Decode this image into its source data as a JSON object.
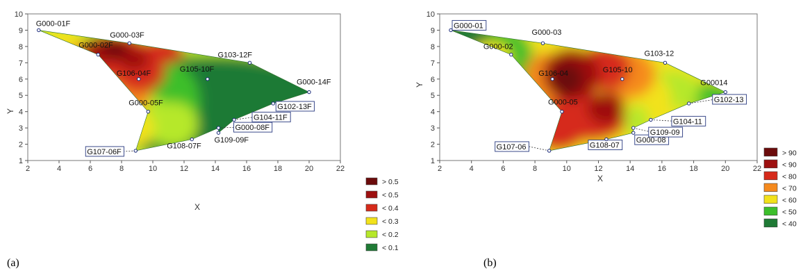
{
  "colors": {
    "c0": "#1f7a35",
    "c1": "#3cbf2b",
    "c2": "#b6e82a",
    "c3": "#f2e21b",
    "c4": "#f58a1e",
    "c5": "#d62a1a",
    "c6": "#9e1010",
    "c7": "#6b0b0b",
    "box_border": "#3a4a8a",
    "axis": "#555555"
  },
  "chart_data": [
    {
      "type": "heatmap",
      "caption": "(a)",
      "xlabel": "X",
      "ylabel": "Y",
      "xlim": [
        2,
        22
      ],
      "ylim": [
        1,
        10
      ],
      "x_ticks": [
        2,
        4,
        6,
        8,
        10,
        12,
        14,
        16,
        18,
        20,
        22
      ],
      "y_ticks": [
        1,
        2,
        3,
        4,
        5,
        6,
        7,
        8,
        9,
        10
      ],
      "legend": [
        {
          "label": "> 0.5",
          "color": "c7"
        },
        {
          "label": "< 0.5",
          "color": "c6"
        },
        {
          "label": "< 0.4",
          "color": "c5"
        },
        {
          "label": "< 0.3",
          "color": "c3"
        },
        {
          "label": "< 0.2",
          "color": "c2"
        },
        {
          "label": "< 0.1",
          "color": "c0"
        }
      ],
      "points": [
        {
          "label": "G000-01F",
          "x": 2.7,
          "y": 9.0,
          "boxed": false
        },
        {
          "label": "G000-02F",
          "x": 6.5,
          "y": 7.5,
          "boxed": false
        },
        {
          "label": "G000-03F",
          "x": 8.5,
          "y": 8.2,
          "boxed": false
        },
        {
          "label": "G106-04F",
          "x": 9.1,
          "y": 6.0,
          "boxed": false
        },
        {
          "label": "G000-05F",
          "x": 9.7,
          "y": 4.0,
          "boxed": false
        },
        {
          "label": "G107-06F",
          "x": 8.9,
          "y": 1.6,
          "boxed": true
        },
        {
          "label": "G108-07F",
          "x": 12.5,
          "y": 2.3,
          "boxed": false
        },
        {
          "label": "G000-08F",
          "x": 14.2,
          "y": 3.0,
          "boxed": true
        },
        {
          "label": "G109-09F",
          "x": 14.2,
          "y": 2.7,
          "boxed": false
        },
        {
          "label": "G105-10F",
          "x": 13.5,
          "y": 6.0,
          "boxed": false
        },
        {
          "label": "G104-11F",
          "x": 15.2,
          "y": 3.5,
          "boxed": true
        },
        {
          "label": "G103-12F",
          "x": 16.2,
          "y": 7.0,
          "boxed": false
        },
        {
          "label": "G102-13F",
          "x": 17.7,
          "y": 4.5,
          "boxed": true
        },
        {
          "label": "G000-14F",
          "x": 20.0,
          "y": 5.2,
          "boxed": false
        }
      ]
    },
    {
      "type": "heatmap",
      "caption": "(b)",
      "xlabel": "X",
      "ylabel": "Y",
      "xlim": [
        2,
        22
      ],
      "ylim": [
        1,
        10
      ],
      "x_ticks": [
        2,
        4,
        6,
        8,
        10,
        12,
        14,
        16,
        18,
        20,
        22
      ],
      "y_ticks": [
        1,
        2,
        3,
        4,
        5,
        6,
        7,
        8,
        9,
        10
      ],
      "legend": [
        {
          "label": "> 90",
          "color": "c7"
        },
        {
          "label": "< 90",
          "color": "c6"
        },
        {
          "label": "< 80",
          "color": "c5"
        },
        {
          "label": "< 70",
          "color": "c4"
        },
        {
          "label": "< 60",
          "color": "c3"
        },
        {
          "label": "< 50",
          "color": "c1"
        },
        {
          "label": "< 40",
          "color": "c0"
        }
      ],
      "points": [
        {
          "label": "G000-01",
          "x": 2.7,
          "y": 9.0,
          "boxed": true
        },
        {
          "label": "G000-02",
          "x": 6.5,
          "y": 7.5,
          "boxed": false
        },
        {
          "label": "G000-03",
          "x": 8.5,
          "y": 8.2,
          "boxed": false
        },
        {
          "label": "G106-04",
          "x": 9.1,
          "y": 6.0,
          "boxed": false
        },
        {
          "label": "G000-05",
          "x": 9.7,
          "y": 4.0,
          "boxed": false
        },
        {
          "label": "G107-06",
          "x": 8.9,
          "y": 1.6,
          "boxed": true
        },
        {
          "label": "G108-07",
          "x": 12.5,
          "y": 2.3,
          "boxed": true
        },
        {
          "label": "G000-08",
          "x": 14.2,
          "y": 2.7,
          "boxed": true
        },
        {
          "label": "G109-09",
          "x": 14.2,
          "y": 3.0,
          "boxed": true
        },
        {
          "label": "G105-10",
          "x": 13.5,
          "y": 6.0,
          "boxed": false
        },
        {
          "label": "G104-11",
          "x": 15.3,
          "y": 3.5,
          "boxed": true
        },
        {
          "label": "G103-12",
          "x": 16.2,
          "y": 7.0,
          "boxed": false
        },
        {
          "label": "G102-13",
          "x": 17.7,
          "y": 4.5,
          "boxed": true
        },
        {
          "label": "G00014",
          "x": 20.0,
          "y": 5.2,
          "boxed": false
        }
      ]
    }
  ]
}
